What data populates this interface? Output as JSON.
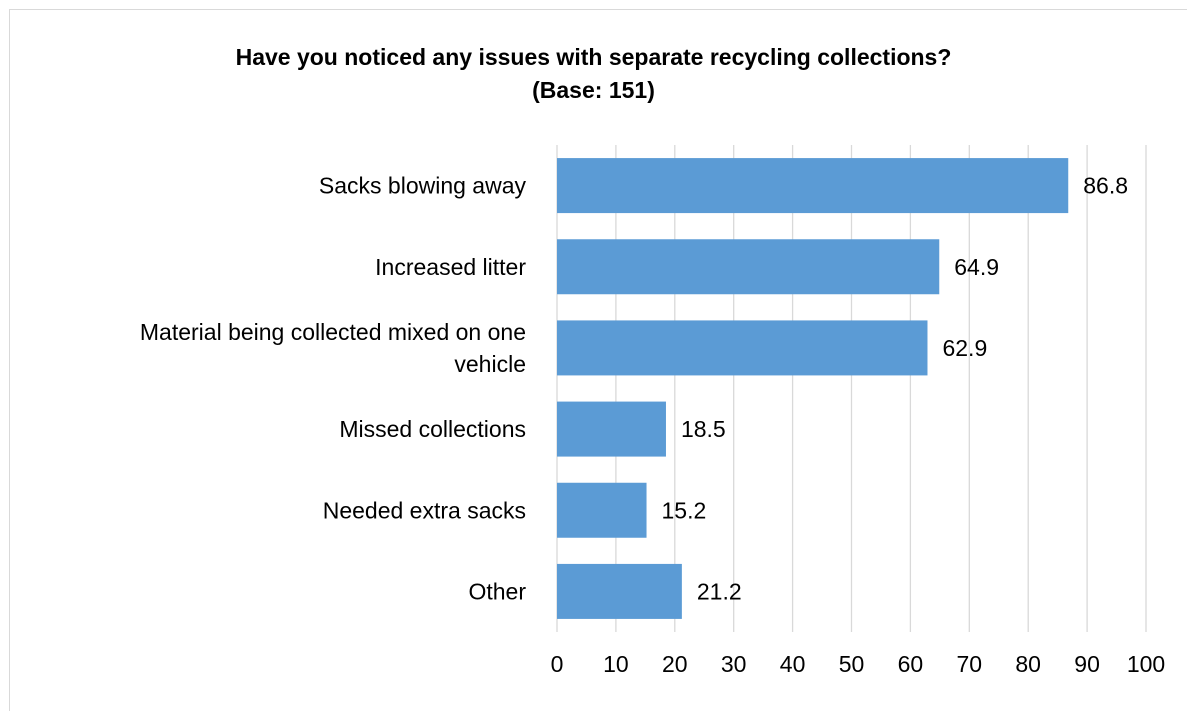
{
  "chart_data": {
    "type": "bar",
    "orientation": "horizontal",
    "title": "Have you noticed any issues with separate recycling collections?",
    "subtitle": "(Base: 151)",
    "categories": [
      "Sacks blowing away",
      "Increased litter",
      "Material being collected mixed on one vehicle",
      "Missed collections",
      "Needed extra sacks",
      "Other"
    ],
    "category_lines": [
      [
        "Sacks blowing away"
      ],
      [
        "Increased litter"
      ],
      [
        "Material being collected mixed on one",
        "vehicle"
      ],
      [
        "Missed collections"
      ],
      [
        "Needed extra sacks"
      ],
      [
        "Other"
      ]
    ],
    "values": [
      86.8,
      64.9,
      62.9,
      18.5,
      15.2,
      21.2
    ],
    "data_labels": [
      "86.8",
      "64.9",
      "62.9",
      "18.5",
      "15.2",
      "21.2"
    ],
    "xlim": [
      0,
      100
    ],
    "x_ticks": [
      0,
      10,
      20,
      30,
      40,
      50,
      60,
      70,
      80,
      90,
      100
    ],
    "x_tick_labels": [
      "0",
      "10",
      "20",
      "30",
      "40",
      "50",
      "60",
      "70",
      "80",
      "90",
      "100"
    ],
    "grid": true,
    "legend": "none",
    "bar_color": "#5b9bd5",
    "grid_color": "#d9d9d9"
  }
}
